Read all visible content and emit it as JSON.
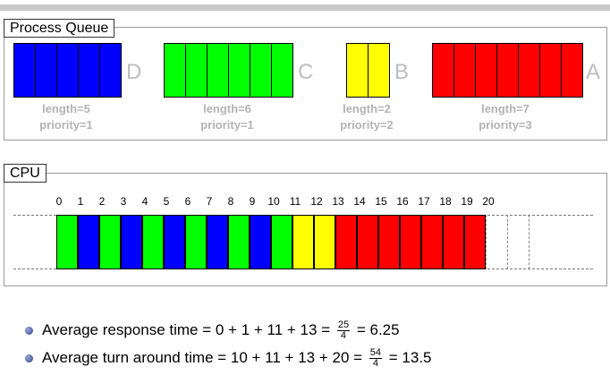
{
  "process_queue": {
    "title": "Process Queue",
    "processes": [
      {
        "name": "D",
        "length": 5,
        "priority": 1,
        "color": "#0000ff",
        "length_label": "length=5",
        "priority_label": "priority=1"
      },
      {
        "name": "C",
        "length": 6,
        "priority": 1,
        "color": "#00ff00",
        "length_label": "length=6",
        "priority_label": "priority=1"
      },
      {
        "name": "B",
        "length": 2,
        "priority": 2,
        "color": "#ffff00",
        "length_label": "length=2",
        "priority_label": "priority=2"
      },
      {
        "name": "A",
        "length": 7,
        "priority": 3,
        "color": "#ff0000",
        "length_label": "length=7",
        "priority_label": "priority=3"
      }
    ]
  },
  "cpu": {
    "title": "CPU",
    "ticks": [
      "0",
      "1",
      "2",
      "3",
      "4",
      "5",
      "6",
      "7",
      "8",
      "9",
      "10",
      "11",
      "12",
      "13",
      "14",
      "15",
      "16",
      "17",
      "18",
      "19",
      "20"
    ],
    "schedule": [
      "C",
      "D",
      "C",
      "D",
      "C",
      "D",
      "C",
      "D",
      "C",
      "D",
      "C",
      "B",
      "B",
      "A",
      "A",
      "A",
      "A",
      "A",
      "A",
      "A"
    ],
    "empty_slots": 3
  },
  "metrics": {
    "response": {
      "prefix": "Average response time = 0 + 1 + 11 + 13 =",
      "num": "25",
      "den": "4",
      "suffix": "= 6.25"
    },
    "turnaround": {
      "prefix": "Average turn around time = 10 + 11 + 13 + 20 =",
      "num": "54",
      "den": "4",
      "suffix": "= 13.5"
    }
  }
}
